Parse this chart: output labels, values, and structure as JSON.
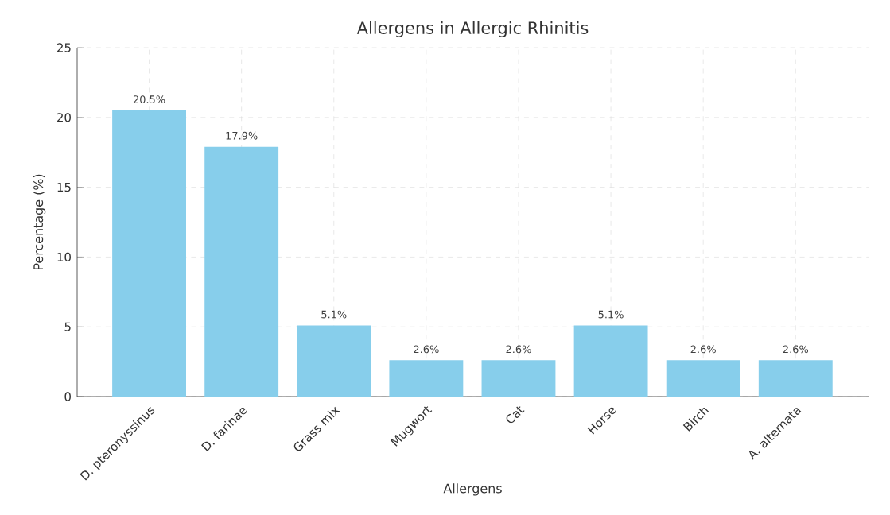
{
  "chart_data": {
    "type": "bar",
    "title": "Allergens in Allergic Rhinitis",
    "xlabel": "Allergens",
    "ylabel": "Percentage (%)",
    "categories": [
      "D. pteronyssinus",
      "D. farinae",
      "Grass mix",
      "Mugwort",
      "Cat",
      "Horse",
      "Birch",
      "A. alternata"
    ],
    "values": [
      20.5,
      17.9,
      5.1,
      2.6,
      2.6,
      5.1,
      2.6,
      2.6
    ],
    "value_labels": [
      "20.5%",
      "17.9%",
      "5.1%",
      "2.6%",
      "2.6%",
      "5.1%",
      "2.6%",
      "2.6%"
    ],
    "color": "#87ceeb",
    "ylim": [
      0,
      25
    ],
    "yticks": [
      0,
      5,
      10,
      15,
      20,
      25
    ],
    "grid": true
  }
}
